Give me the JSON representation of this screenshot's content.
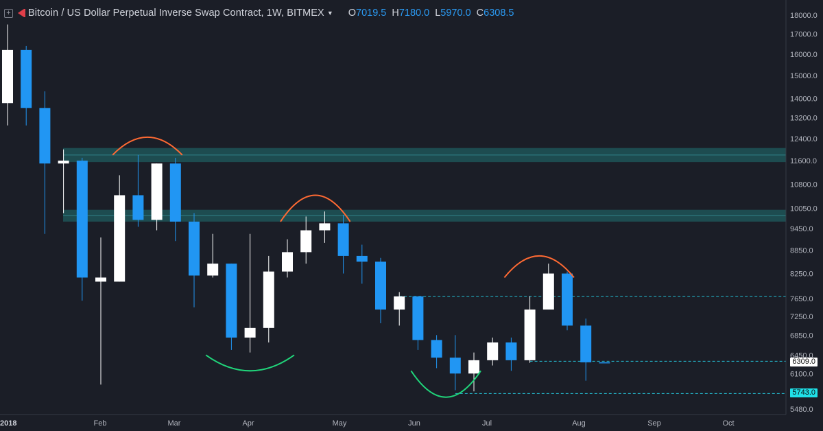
{
  "header": {
    "expand_icon": "plus-square-icon",
    "logo_icon": "bitmex-flag-icon",
    "title": "Bitcoin / US Dollar Perpetual Inverse Swap Contract, 1W, BITMEX",
    "dropdown_icon": "caret-down-icon",
    "ohlc": [
      {
        "label": "O",
        "value": "7019.5"
      },
      {
        "label": "H",
        "value": "7180.0"
      },
      {
        "label": "L",
        "value": "5970.0"
      },
      {
        "label": "C",
        "value": "6308.5"
      }
    ]
  },
  "colors": {
    "background": "#1b1e27",
    "bull": "#ffffff",
    "bear": "#2196f3",
    "zone": "#1f5c5f",
    "resistance_arc": "#ff6a33",
    "support_arc": "#20d47a",
    "level_line": "#25c2d8"
  },
  "chart_data": {
    "type": "candlestick",
    "symbol": "BITMEX",
    "interval": "1W",
    "x_tick_labels": [
      "2018",
      "Feb",
      "Mar",
      "Apr",
      "May",
      "Jun",
      "Jul",
      "Aug",
      "Sep",
      "Oct"
    ],
    "y_tick_labels": [
      "18000.0",
      "17000.0",
      "16000.0",
      "15000.0",
      "14000.0",
      "13200.0",
      "12400.0",
      "11600.0",
      "10800.0",
      "10050.0",
      "9450.0",
      "8850.0",
      "8250.0",
      "7650.0",
      "7250.0",
      "6850.0",
      "6450.0",
      "6100.0",
      "5480.0"
    ],
    "y_scale": "log",
    "ylim": [
      5300,
      18500
    ],
    "price_tags": [
      {
        "value": "6309.0",
        "price": 6309,
        "style": "last"
      },
      {
        "value": "5743.0",
        "price": 5743,
        "style": "level"
      }
    ],
    "candles": [
      {
        "o": 13800,
        "h": 17500,
        "l": 12900,
        "c": 16200
      },
      {
        "o": 16200,
        "h": 16400,
        "l": 12900,
        "c": 13600
      },
      {
        "o": 13600,
        "h": 14300,
        "l": 9300,
        "c": 11500
      },
      {
        "o": 11500,
        "h": 12000,
        "l": 9900,
        "c": 11600
      },
      {
        "o": 11600,
        "h": 11700,
        "l": 7600,
        "c": 8150
      },
      {
        "o": 8050,
        "h": 9200,
        "l": 5900,
        "c": 8150
      },
      {
        "o": 8050,
        "h": 11100,
        "l": 8050,
        "c": 10450
      },
      {
        "o": 10450,
        "h": 11800,
        "l": 9500,
        "c": 9700
      },
      {
        "o": 9700,
        "h": 11500,
        "l": 9400,
        "c": 11500
      },
      {
        "o": 11500,
        "h": 11700,
        "l": 9100,
        "c": 9650
      },
      {
        "o": 9650,
        "h": 9900,
        "l": 7450,
        "c": 8200
      },
      {
        "o": 8200,
        "h": 9300,
        "l": 8150,
        "c": 8500
      },
      {
        "o": 8500,
        "h": 8500,
        "l": 6550,
        "c": 6800
      },
      {
        "o": 6800,
        "h": 9300,
        "l": 6500,
        "c": 7000
      },
      {
        "o": 7000,
        "h": 8700,
        "l": 6700,
        "c": 8300
      },
      {
        "o": 8300,
        "h": 9150,
        "l": 8150,
        "c": 8800
      },
      {
        "o": 8800,
        "h": 9800,
        "l": 8500,
        "c": 9400
      },
      {
        "o": 9400,
        "h": 9950,
        "l": 9050,
        "c": 9600
      },
      {
        "o": 9600,
        "h": 9850,
        "l": 8250,
        "c": 8700
      },
      {
        "o": 8700,
        "h": 9000,
        "l": 8000,
        "c": 8550
      },
      {
        "o": 8550,
        "h": 8650,
        "l": 7100,
        "c": 7400
      },
      {
        "o": 7400,
        "h": 7800,
        "l": 7050,
        "c": 7700
      },
      {
        "o": 7700,
        "h": 7700,
        "l": 6550,
        "c": 6750
      },
      {
        "o": 6750,
        "h": 6850,
        "l": 6200,
        "c": 6400
      },
      {
        "o": 6400,
        "h": 6850,
        "l": 5800,
        "c": 6100
      },
      {
        "o": 6100,
        "h": 6500,
        "l": 5780,
        "c": 6350
      },
      {
        "o": 6350,
        "h": 6800,
        "l": 6250,
        "c": 6700
      },
      {
        "o": 6700,
        "h": 6800,
        "l": 6150,
        "c": 6350
      },
      {
        "o": 6350,
        "h": 7700,
        "l": 6300,
        "c": 7400
      },
      {
        "o": 7400,
        "h": 8500,
        "l": 7400,
        "c": 8250
      },
      {
        "o": 8250,
        "h": 8300,
        "l": 6950,
        "c": 7050
      },
      {
        "o": 7050,
        "h": 7200,
        "l": 5970,
        "c": 6310
      },
      {
        "o": 6310,
        "h": 6310,
        "l": 6300,
        "c": 6309
      }
    ],
    "zones": [
      {
        "from": 11550,
        "to": 12050
      },
      {
        "from": 9650,
        "to": 10000
      }
    ],
    "levels": [
      {
        "price": 7700,
        "from_candle": 21
      },
      {
        "price": 6330,
        "from_candle": 28
      },
      {
        "price": 5743,
        "from_candle": 24
      }
    ],
    "arcs": [
      {
        "kind": "resistance",
        "from_candle": 6,
        "to_candle": 9,
        "price": 11800,
        "peak": 12450
      },
      {
        "kind": "resistance",
        "from_candle": 15,
        "to_candle": 18,
        "price": 9650,
        "peak": 10450
      },
      {
        "kind": "resistance",
        "from_candle": 27,
        "to_candle": 30,
        "price": 8150,
        "peak": 8700
      },
      {
        "kind": "support",
        "from_candle": 11,
        "to_candle": 15,
        "price": 6450,
        "peak": 6150
      },
      {
        "kind": "support",
        "from_candle": 22,
        "to_candle": 25,
        "price": 6150,
        "peak": 5680
      }
    ]
  }
}
